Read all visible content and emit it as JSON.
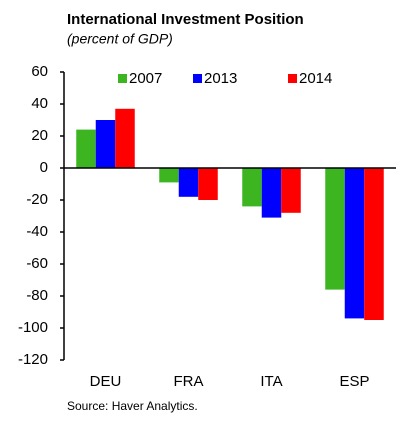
{
  "chart_data": {
    "type": "bar",
    "title": "International Investment Position",
    "subtitle": "(percent of GDP)",
    "source": "Source: Haver Analytics.",
    "categories": [
      "DEU",
      "FRA",
      "ITA",
      "ESP"
    ],
    "series": [
      {
        "name": "2007",
        "color": "#3cb521",
        "values": [
          24,
          -9,
          -24,
          -76
        ]
      },
      {
        "name": "2013",
        "color": "#0000ff",
        "values": [
          30,
          -18,
          -31,
          -94
        ]
      },
      {
        "name": "2014",
        "color": "#ff0000",
        "values": [
          37,
          -20,
          -28,
          -95
        ]
      }
    ],
    "ylim": [
      -120,
      60
    ],
    "yticks": [
      -120,
      -100,
      -80,
      -60,
      -40,
      -20,
      0,
      20,
      40,
      60
    ],
    "legend": "top"
  }
}
